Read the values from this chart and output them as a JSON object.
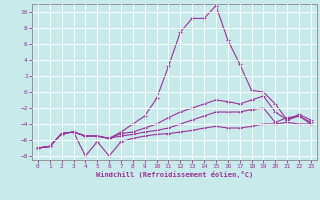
{
  "background_color": "#c8eaea",
  "grid_color": "#aaaaaa",
  "line_color": "#993399",
  "xlabel": "Windchill (Refroidissement éolien,°C)",
  "xlim": [
    -0.5,
    23.5
  ],
  "ylim": [
    -8.5,
    11
  ],
  "yticks": [
    -8,
    -6,
    -4,
    -2,
    0,
    2,
    4,
    6,
    8,
    10
  ],
  "xticks": [
    0,
    1,
    2,
    3,
    4,
    5,
    6,
    7,
    8,
    9,
    10,
    11,
    12,
    13,
    14,
    15,
    16,
    17,
    18,
    19,
    20,
    21,
    22,
    23
  ],
  "series1_x": [
    0,
    1,
    2,
    3,
    4,
    5,
    6,
    7,
    8,
    9,
    10,
    11,
    12,
    13,
    14,
    15,
    16,
    17,
    18,
    19,
    20,
    21,
    22,
    23
  ],
  "series1_y": [
    -7,
    -6.8,
    -5.2,
    -5.0,
    -8.0,
    -6.2,
    -8.0,
    -6.2,
    -5.8,
    -5.5,
    -5.3,
    -5.2,
    -5.0,
    -4.8,
    -4.5,
    -4.3,
    -4.5,
    -4.5,
    -4.3,
    -4.0,
    -4.0,
    -3.8,
    -4.0,
    -4.0
  ],
  "series2_x": [
    0,
    1,
    2,
    3,
    4,
    5,
    6,
    7,
    8,
    9,
    10,
    11,
    12,
    13,
    14,
    15,
    16,
    17,
    18,
    19,
    20,
    21,
    22,
    23
  ],
  "series2_y": [
    -7,
    -6.8,
    -5.2,
    -5.0,
    -5.5,
    -5.5,
    -5.8,
    -5.5,
    -5.3,
    -5.0,
    -4.8,
    -4.5,
    -4.0,
    -3.5,
    -3.0,
    -2.5,
    -2.5,
    -2.5,
    -2.2,
    -2.0,
    -3.8,
    -3.2,
    -3.0,
    -3.8
  ],
  "series3_x": [
    0,
    1,
    2,
    3,
    4,
    5,
    6,
    7,
    8,
    9,
    10,
    11,
    12,
    13,
    14,
    15,
    16,
    17,
    18,
    19,
    20,
    21,
    22,
    23
  ],
  "series3_y": [
    -7,
    -6.8,
    -5.2,
    -5.0,
    -5.5,
    -5.5,
    -5.8,
    -5.2,
    -5.0,
    -4.5,
    -4.0,
    -3.2,
    -2.5,
    -2.0,
    -1.5,
    -1.0,
    -1.2,
    -1.5,
    -1.0,
    -0.5,
    -2.5,
    -3.5,
    -2.8,
    -3.5
  ],
  "series4_x": [
    0,
    1,
    2,
    3,
    4,
    5,
    6,
    7,
    8,
    9,
    10,
    11,
    12,
    13,
    14,
    15,
    16,
    17,
    18,
    19,
    20,
    21,
    22,
    23
  ],
  "series4_y": [
    -7,
    -6.8,
    -5.2,
    -5.0,
    -5.5,
    -5.5,
    -5.8,
    -5.0,
    -4.0,
    -3.0,
    -0.8,
    3.2,
    7.5,
    9.2,
    9.2,
    10.8,
    6.5,
    3.5,
    0.2,
    0.0,
    -1.5,
    -3.5,
    -3.0,
    -4.0
  ]
}
